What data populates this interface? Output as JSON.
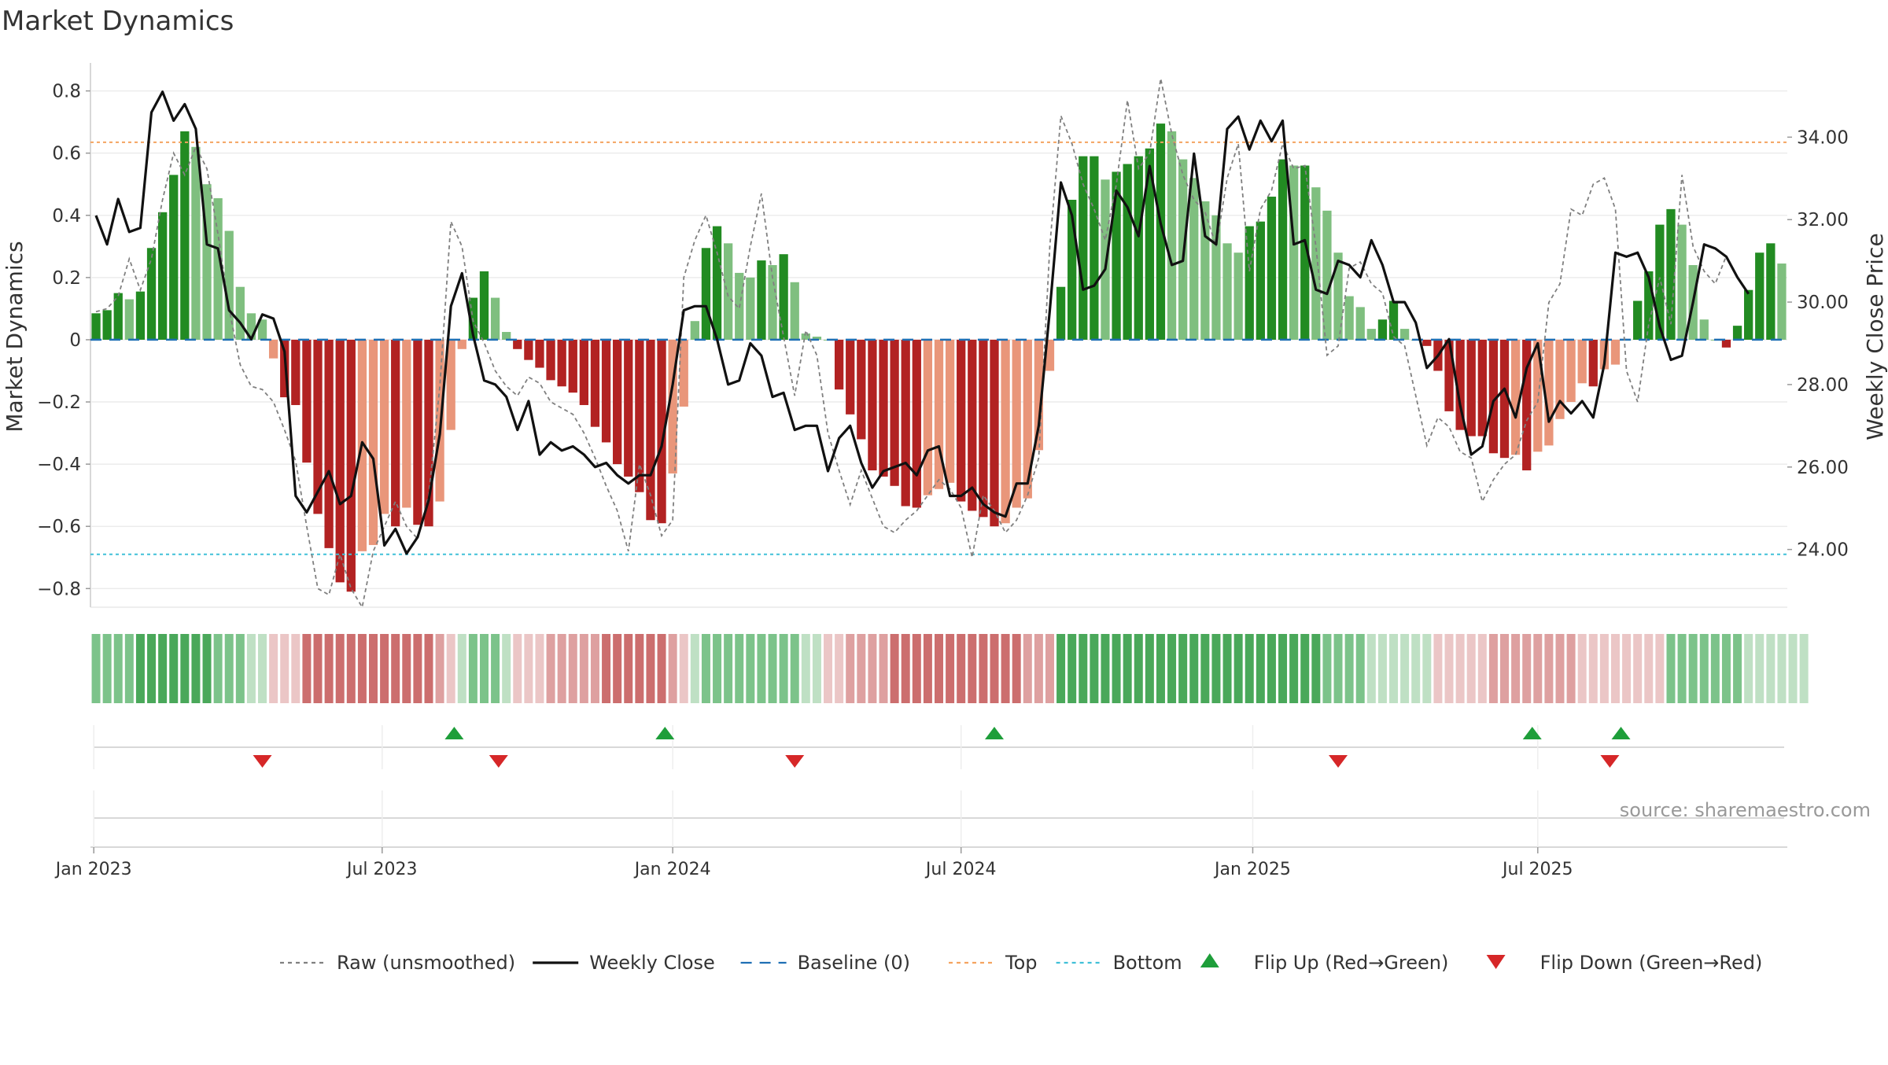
{
  "chart_data": {
    "type": "bar",
    "title": "Market Dynamics",
    "ylabel": "Market Dynamics",
    "ylabel_right": "Weekly Close Price",
    "ylim": [
      -0.86,
      0.89
    ],
    "ylim_right": [
      22.6,
      35.8
    ],
    "y_ticks": [
      0.8,
      0.6,
      0.4,
      0.2,
      0,
      -0.2,
      -0.4,
      -0.6,
      -0.8
    ],
    "y_tick_labels": [
      "0.8",
      "0.6",
      "0.4",
      "0.2",
      "0",
      "−0.2",
      "−0.4",
      "−0.6",
      "−0.8"
    ],
    "right_ticks": [
      24,
      26,
      28,
      30,
      32,
      34
    ],
    "right_tick_labels": [
      "24.00",
      "26.00",
      "28.00",
      "30.00",
      "32.00",
      "34.00"
    ],
    "x_ticks": [
      "Jan 2023",
      "Jul 2023",
      "Jan 2024",
      "Jul 2024",
      "Jan 2025",
      "Jul 2025"
    ],
    "x_tick_weeks": [
      0.3,
      26.3,
      52.5,
      78.5,
      104.8,
      130.5
    ],
    "top_level": 0.635,
    "bottom_level": -0.69,
    "source": "source: sharemaestro.com",
    "colors": {
      "strong_up": "#228b22",
      "weak_up": "#7fbf7f",
      "strong_down": "#b22222",
      "weak_down": "#e9967a",
      "raw": "#808080",
      "close": "#111111",
      "baseline": "#1f6fb4",
      "top": "#f4a460",
      "bottom": "#40c0d8",
      "flip_up": "#1e9e3a",
      "flip_down": "#d62728"
    },
    "series": [
      {
        "name": "Market Dynamics",
        "values": [
          0.085,
          0.095,
          0.15,
          0.13,
          0.155,
          0.295,
          0.41,
          0.53,
          0.67,
          0.62,
          0.5,
          0.455,
          0.35,
          0.17,
          0.085,
          0.065,
          -0.06,
          -0.185,
          -0.21,
          -0.395,
          -0.56,
          -0.67,
          -0.78,
          -0.81,
          -0.68,
          -0.66,
          -0.56,
          -0.6,
          -0.54,
          -0.595,
          -0.6,
          -0.52,
          -0.29,
          -0.03,
          0.135,
          0.22,
          0.135,
          0.025,
          -0.03,
          -0.065,
          -0.09,
          -0.13,
          -0.15,
          -0.17,
          -0.21,
          -0.28,
          -0.33,
          -0.4,
          -0.44,
          -0.49,
          -0.58,
          -0.59,
          -0.43,
          -0.215,
          0.06,
          0.295,
          0.365,
          0.31,
          0.215,
          0.2,
          0.255,
          0.24,
          0.275,
          0.185,
          0.02,
          0.01,
          0,
          -0.16,
          -0.24,
          -0.32,
          -0.42,
          -0.44,
          -0.47,
          -0.535,
          -0.54,
          -0.5,
          -0.48,
          -0.46,
          -0.52,
          -0.55,
          -0.57,
          -0.6,
          -0.59,
          -0.54,
          -0.51,
          -0.355,
          -0.1,
          0.17,
          0.45,
          0.59,
          0.59,
          0.515,
          0.54,
          0.565,
          0.59,
          0.615,
          0.695,
          0.67,
          0.58,
          0.52,
          0.445,
          0.4,
          0.31,
          0.28,
          0.365,
          0.38,
          0.46,
          0.58,
          0.56,
          0.56,
          0.49,
          0.415,
          0.28,
          0.14,
          0.105,
          0.035,
          0.065,
          0.125,
          0.035,
          0,
          -0.02,
          -0.1,
          -0.23,
          -0.29,
          -0.31,
          -0.31,
          -0.365,
          -0.38,
          -0.37,
          -0.42,
          -0.36,
          -0.34,
          -0.255,
          -0.2,
          -0.14,
          -0.15,
          -0.095,
          -0.08,
          0,
          0.125,
          0.22,
          0.37,
          0.42,
          0.37,
          0.24,
          0.065,
          0,
          -0.025,
          0.045,
          0.16,
          0.28,
          0.31,
          0.245
        ]
      },
      {
        "name": "Raw (unsmoothed)",
        "values": [
          0.09,
          0.1,
          0.14,
          0.26,
          0.16,
          0.26,
          0.45,
          0.6,
          0.53,
          0.62,
          0.55,
          0.34,
          0.1,
          -0.08,
          -0.15,
          -0.16,
          -0.2,
          -0.29,
          -0.39,
          -0.6,
          -0.8,
          -0.82,
          -0.69,
          -0.8,
          -0.86,
          -0.68,
          -0.6,
          -0.52,
          -0.6,
          -0.64,
          -0.5,
          -0.15,
          0.38,
          0.3,
          0.06,
          -0.01,
          -0.1,
          -0.15,
          -0.18,
          -0.12,
          -0.14,
          -0.2,
          -0.22,
          -0.24,
          -0.3,
          -0.38,
          -0.47,
          -0.55,
          -0.68,
          -0.4,
          -0.5,
          -0.63,
          -0.58,
          0.2,
          0.32,
          0.4,
          0.28,
          0.14,
          0.1,
          0.3,
          0.47,
          0.2,
          0.01,
          -0.18,
          0.03,
          -0.05,
          -0.3,
          -0.42,
          -0.53,
          -0.42,
          -0.51,
          -0.6,
          -0.62,
          -0.58,
          -0.55,
          -0.5,
          -0.45,
          -0.48,
          -0.54,
          -0.7,
          -0.5,
          -0.55,
          -0.62,
          -0.58,
          -0.5,
          -0.38,
          0.3,
          0.72,
          0.63,
          0.5,
          0.42,
          0.32,
          0.5,
          0.77,
          0.55,
          0.6,
          0.84,
          0.66,
          0.53,
          0.45,
          0.41,
          0.3,
          0.52,
          0.63,
          0.22,
          0.42,
          0.48,
          0.63,
          0.55,
          0.56,
          0.3,
          -0.05,
          -0.02,
          0.23,
          0.25,
          0.18,
          0.15,
          0.01,
          -0.02,
          -0.18,
          -0.34,
          -0.25,
          -0.28,
          -0.36,
          -0.38,
          -0.52,
          -0.45,
          -0.4,
          -0.37,
          -0.26,
          -0.2,
          0.12,
          0.18,
          0.42,
          0.4,
          0.5,
          0.52,
          0.42,
          -0.1,
          -0.2,
          0.05,
          0.2,
          0.05,
          0.53,
          0.3,
          0.22,
          0.18,
          0.27
        ]
      },
      {
        "name": "Weekly Close",
        "values": [
          32.1,
          31.4,
          32.5,
          31.7,
          31.8,
          34.6,
          35.1,
          34.4,
          34.8,
          34.2,
          31.4,
          31.3,
          29.8,
          29.5,
          29.1,
          29.7,
          29.6,
          28.8,
          25.3,
          24.9,
          25.4,
          25.9,
          25.1,
          25.3,
          26.6,
          26.2,
          24.1,
          24.5,
          23.9,
          24.3,
          25.2,
          26.8,
          29.9,
          30.7,
          29.2,
          28.1,
          28.0,
          27.7,
          26.9,
          27.6,
          26.3,
          26.6,
          26.4,
          26.5,
          26.3,
          26.0,
          26.1,
          25.8,
          25.6,
          25.8,
          25.8,
          26.5,
          28.0,
          29.8,
          29.9,
          29.9,
          29.1,
          28.0,
          28.1,
          29.0,
          28.7,
          27.7,
          27.8,
          26.9,
          27.0,
          27.0,
          25.9,
          26.7,
          27.0,
          26.1,
          25.5,
          25.9,
          26.0,
          26.1,
          25.8,
          26.4,
          26.5,
          25.3,
          25.3,
          25.5,
          25.1,
          24.9,
          24.8,
          25.6,
          25.6,
          27.0,
          29.8,
          32.9,
          32.1,
          30.3,
          30.4,
          30.8,
          32.7,
          32.3,
          31.6,
          33.3,
          31.9,
          30.9,
          31.0,
          33.6,
          31.6,
          31.4,
          34.2,
          34.5,
          33.7,
          34.4,
          33.9,
          34.4,
          31.4,
          31.5,
          30.3,
          30.2,
          31.0,
          30.9,
          30.6,
          31.5,
          30.9,
          30.0,
          30.0,
          29.5,
          28.4,
          28.7,
          29.1,
          27.5,
          26.3,
          26.5,
          27.6,
          27.9,
          27.2,
          28.4,
          29.0,
          27.1,
          27.6,
          27.3,
          27.6,
          27.2,
          28.5,
          31.2,
          31.1,
          31.2,
          30.6,
          29.4,
          28.6,
          28.7,
          30.0,
          31.4,
          31.3,
          31.1,
          30.6,
          30.2
        ]
      }
    ],
    "regime_strip": [
      2,
      2,
      2,
      2,
      3,
      3,
      3,
      3,
      3,
      3,
      3,
      2,
      2,
      2,
      1,
      1,
      -1,
      -1,
      -1,
      -3,
      -3,
      -3,
      -3,
      -3,
      -3,
      -3,
      -3,
      -3,
      -3,
      -3,
      -3,
      -2,
      -1,
      1,
      2,
      2,
      2,
      1,
      -1,
      -1,
      -1,
      -2,
      -2,
      -2,
      -2,
      -2,
      -3,
      -3,
      -3,
      -3,
      -3,
      -3,
      -2,
      -1,
      1,
      2,
      2,
      2,
      2,
      2,
      2,
      2,
      2,
      2,
      1,
      1,
      -1,
      -1,
      -2,
      -2,
      -2,
      -2,
      -3,
      -3,
      -3,
      -3,
      -3,
      -3,
      -3,
      -3,
      -3,
      -3,
      -3,
      -3,
      -2,
      -2,
      -2,
      3,
      3,
      3,
      3,
      3,
      3,
      3,
      3,
      3,
      3,
      3,
      3,
      3,
      3,
      3,
      3,
      3,
      3,
      3,
      3,
      3,
      3,
      3,
      3,
      2,
      2,
      2,
      2,
      1,
      1,
      1,
      1,
      1,
      1,
      -1,
      -1,
      -1,
      -1,
      -1,
      -2,
      -2,
      -2,
      -2,
      -2,
      -2,
      -2,
      -2,
      -1,
      -1,
      -1,
      -1,
      -1,
      -1,
      -1,
      -1,
      2,
      2,
      2,
      2,
      2,
      2,
      2,
      1,
      1,
      1,
      1,
      1,
      1
    ],
    "flips": [
      {
        "type": "down",
        "week": 15.5
      },
      {
        "type": "up",
        "week": 32.8
      },
      {
        "type": "down",
        "week": 36.8
      },
      {
        "type": "up",
        "week": 51.8
      },
      {
        "type": "down",
        "week": 63.5
      },
      {
        "type": "up",
        "week": 81.5
      },
      {
        "type": "down",
        "week": 112.5
      },
      {
        "type": "up",
        "week": 130.0
      },
      {
        "type": "down",
        "week": 137.0
      },
      {
        "type": "up",
        "week": 138.0
      }
    ],
    "legend": [
      {
        "label": "Raw (unsmoothed)",
        "kind": "dotted-line",
        "color": "#808080"
      },
      {
        "label": "Weekly Close",
        "kind": "line",
        "color": "#111111"
      },
      {
        "label": "Baseline (0)",
        "kind": "dashed-line",
        "color": "#1f6fb4"
      },
      {
        "label": "Top",
        "kind": "dotted-line",
        "color": "#f4a460"
      },
      {
        "label": "Bottom",
        "kind": "dotted-line",
        "color": "#40c0d8"
      },
      {
        "label": "Flip Up (Red→Green)",
        "kind": "triangle-up",
        "color": "#1e9e3a"
      },
      {
        "label": "Flip Down (Green→Red)",
        "kind": "triangle-down",
        "color": "#d62728"
      }
    ]
  }
}
